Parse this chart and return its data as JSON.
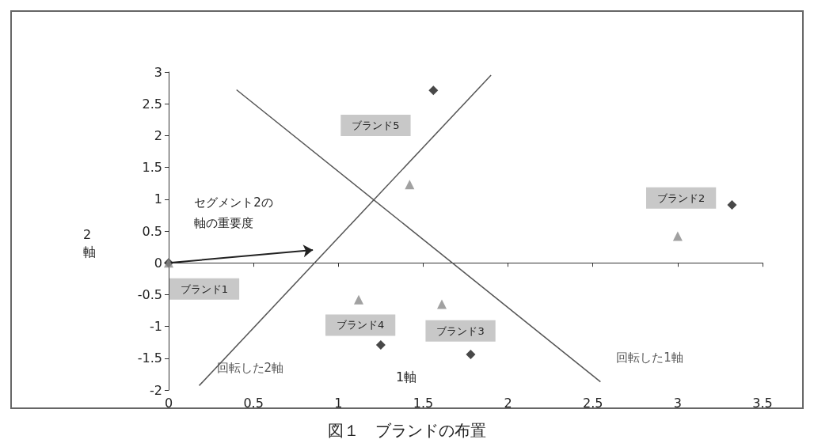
{
  "chart_data": {
    "type": "scatter",
    "title": "図１　ブランドの布置",
    "xlabel": "1軸",
    "ylabel": "2\n軸",
    "xlim": [
      0,
      3.5
    ],
    "xticks": [
      0,
      0.5,
      1,
      1.5,
      2,
      2.5,
      3,
      3.5
    ],
    "ylim": [
      -2,
      3
    ],
    "yticks": [
      -2,
      -1.5,
      -1,
      -0.5,
      0,
      0.5,
      1,
      1.5,
      2,
      2.5,
      3
    ],
    "legend": false,
    "series": [
      {
        "marker": "diamond",
        "color": "#1a1a1a",
        "x": [
          0,
          1.56,
          3.32,
          1.25,
          1.78
        ],
        "values": [
          0,
          2.71,
          0.91,
          -1.29,
          -1.44
        ]
      },
      {
        "marker": "triangle",
        "color": "#8a8a8a",
        "x": [
          0,
          1.42,
          3.0,
          1.12,
          1.61
        ],
        "values": [
          0,
          1.23,
          0.42,
          -0.58,
          -0.65
        ]
      },
      {
        "type": "line",
        "name": "回転した1軸",
        "color": "#555555",
        "x": [
          0.4,
          2.545
        ],
        "values": [
          2.72,
          -1.87
        ]
      },
      {
        "type": "line",
        "name": "回転した2軸",
        "color": "#555555",
        "x": [
          0.18,
          1.9
        ],
        "values": [
          -1.93,
          2.95
        ]
      }
    ],
    "annotations": [
      "セグメント2の",
      "軸の重要度",
      "ブランド1",
      "ブランド2",
      "ブランド3",
      "ブランド4",
      "ブランド5"
    ]
  }
}
